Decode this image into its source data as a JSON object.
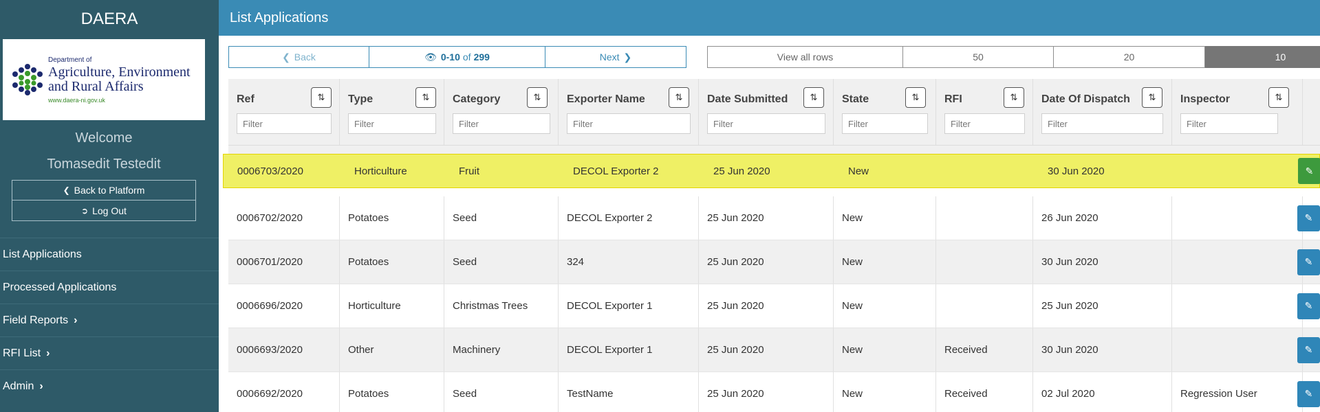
{
  "sidebar": {
    "brand": "DAERA",
    "logo": {
      "small": "Department of",
      "line1": "Agriculture, Environment",
      "line2": "and Rural Affairs",
      "url": "www.daera-ni.gov.uk"
    },
    "welcome": "Welcome",
    "user": "Tomasedit Testedit",
    "back_label": "Back to Platform",
    "logout_label": "Log Out",
    "nav": [
      {
        "label": "List Applications",
        "chevron": false
      },
      {
        "label": "Processed Applications",
        "chevron": false
      },
      {
        "label": "Field Reports",
        "chevron": true
      },
      {
        "label": "RFI List",
        "chevron": true
      },
      {
        "label": "Admin",
        "chevron": true
      }
    ]
  },
  "header": {
    "title": "List Applications"
  },
  "pager": {
    "back_label": "Back",
    "range": "0-10",
    "of": "of",
    "total": "299",
    "next_label": "Next"
  },
  "rows_per_page": {
    "options": [
      "View all rows",
      "50",
      "20",
      "10"
    ],
    "selected": "10"
  },
  "table": {
    "columns": [
      "Ref",
      "Type",
      "Category",
      "Exporter Name",
      "Date Submitted",
      "State",
      "RFI",
      "Date Of Dispatch",
      "Inspector"
    ],
    "filter_placeholder": "Filter",
    "rows": [
      [
        "0006703/2020",
        "Horticulture",
        "Fruit",
        "DECOL Exporter 2",
        "25 Jun 2020",
        "New",
        "",
        "30 Jun 2020",
        ""
      ],
      [
        "0006702/2020",
        "Potatoes",
        "Seed",
        "DECOL Exporter 2",
        "25 Jun 2020",
        "New",
        "",
        "26 Jun 2020",
        ""
      ],
      [
        "0006701/2020",
        "Potatoes",
        "Seed",
        "324",
        "25 Jun 2020",
        "New",
        "",
        "30 Jun 2020",
        ""
      ],
      [
        "0006696/2020",
        "Horticulture",
        "Christmas Trees",
        "DECOL Exporter 1",
        "25 Jun 2020",
        "New",
        "",
        "25 Jun 2020",
        ""
      ],
      [
        "0006693/2020",
        "Other",
        "Machinery",
        "DECOL Exporter 1",
        "25 Jun 2020",
        "New",
        "Received",
        "30 Jun 2020",
        ""
      ],
      [
        "0006692/2020",
        "Potatoes",
        "Seed",
        "TestName",
        "25 Jun 2020",
        "New",
        "Received",
        "02 Jul 2020",
        "Regression User"
      ]
    ]
  },
  "icons": {
    "sort": "sort-icon",
    "edit": "edit-icon"
  },
  "colors": {
    "sidebar_bg": "#2e5a68",
    "header_bg": "#3a8bb5",
    "highlight_row": "#eff065",
    "edit_button": "#2f86b8",
    "edit_button_selected": "#3d9a3d"
  }
}
